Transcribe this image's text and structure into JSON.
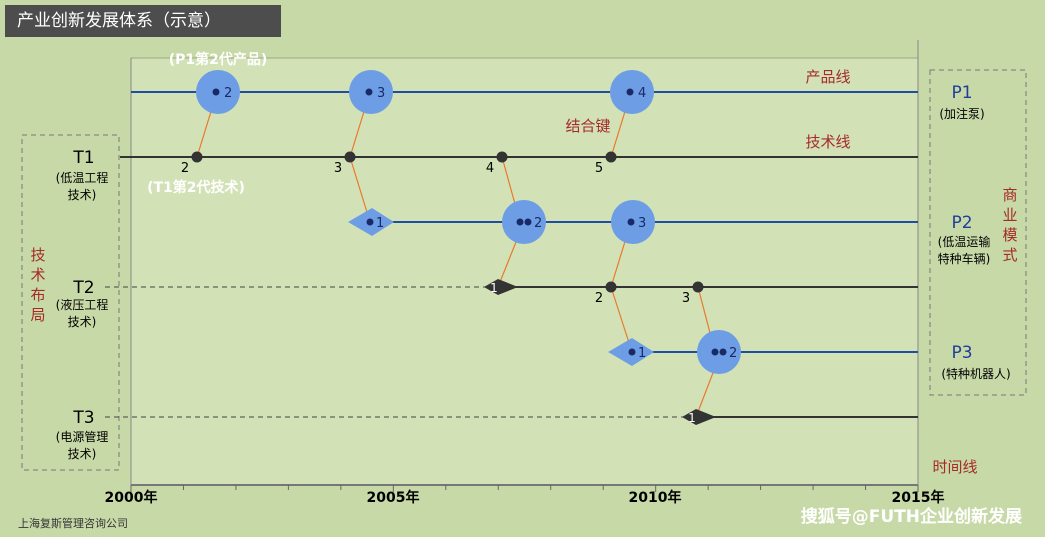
{
  "title": "产业创新发展体系（示意）",
  "years": [
    "2000年",
    "2005年",
    "2010年",
    "2015年"
  ],
  "time_axis_label": "时间线",
  "product_line_label": "产品线",
  "tech_line_label": "技术线",
  "bond_label": "结合键",
  "tech_layout_label": [
    "技",
    "术",
    "布",
    "局"
  ],
  "business_model_label": [
    "商",
    "业",
    "模",
    "式"
  ],
  "products": [
    {
      "id": "P1",
      "sub": [
        "(加注泵)"
      ]
    },
    {
      "id": "P2",
      "sub": [
        "(低温运输",
        "特种车辆)"
      ]
    },
    {
      "id": "P3",
      "sub": [
        "(特种机器人)"
      ]
    }
  ],
  "techs": [
    {
      "id": "T1",
      "sub": [
        "(低温工程",
        "技术)"
      ]
    },
    {
      "id": "T2",
      "sub": [
        "(液压工程",
        "技术)"
      ]
    },
    {
      "id": "T3",
      "sub": [
        "(电源管理",
        "技术)"
      ]
    }
  ],
  "annotations": {
    "p1_gen2": "(P1第2代产品)",
    "t1_gen2": "(T1第2代技术)"
  },
  "p1_nodes": [
    "2",
    "3",
    "4"
  ],
  "t1_nodes": [
    "2",
    "3",
    "4",
    "5"
  ],
  "p2_nodes": [
    "1",
    "2",
    "3"
  ],
  "t2_nodes": [
    "1",
    "2",
    "3"
  ],
  "p3_nodes": [
    "1",
    "2"
  ],
  "t3_nodes": [
    "1"
  ],
  "footer": "上海复斯管理咨询公司",
  "watermark": "搜狐号@FUTH企业创新发展"
}
